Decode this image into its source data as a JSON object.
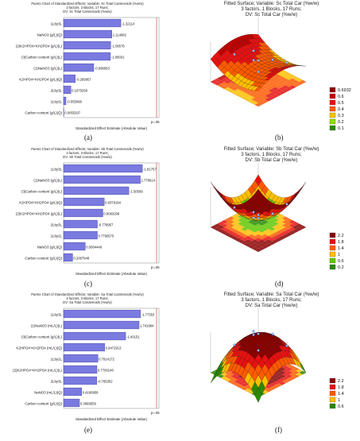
{
  "chart_data": [
    {
      "panel": "(a)",
      "type": "bar",
      "title_lines": [
        "Pareto Chart of Standardized Effects; Variable: Sc Total Carotenoids (%w/w)",
        "3 factors, 3 Blocks, 17 Runs;",
        "DV: Sc Total Carotenoids (%w/w)"
      ],
      "xlabel": "Standardized Effect Estimate (Absolute Value)",
      "p_label": "p=.05",
      "categories": [
        "1Lby3L",
        "NaNO3 (g/L)(Q)",
        "(2)K2HPO4+KH2PO4 (g/L)(L)",
        "(3)Carbon content (g/L)(L)",
        "(1)NaNO3 (g/L)(L)",
        "K2HPO4+KH2PO4 (g/L)(Q)",
        "2Lby3L",
        "1Lby2L",
        "Carbon content (g/L)(Q)"
      ],
      "values": [
        1.32114,
        1.114682,
        1.08578,
        1.08031,
        0.696563,
        0.269957,
        0.1675258,
        0.055068,
        0.0055297
      ],
      "value_labels": [
        "-1.32114",
        "1.114682",
        "-1.08578",
        "-1.08031",
        "-0.696563",
        "-0.269957",
        "0.1675258",
        "-0.055068",
        "0.0055297"
      ]
    },
    {
      "panel": "(b)",
      "type": "surface",
      "title_lines": [
        "Fitted Surface; Variable: Sc Total Car (%w/w)",
        "3 factors, 1 Blocks, 17 Runs;",
        "DV: Sc Total Car (%w/w)"
      ],
      "legend": [
        "0.6932",
        "0.6",
        "0.5",
        "0.4",
        "0.3",
        "0.2",
        "0.1"
      ],
      "legend_colors": [
        "#8b0000",
        "#c00000",
        "#e81010",
        "#ff5a00",
        "#ffc000",
        "#8ddd00",
        "#2a8a00"
      ]
    },
    {
      "panel": "(c)",
      "type": "bar",
      "title_lines": [
        "Pareto Chart of Standardized Effects; Variable: Sb Total Carotenoids (%w/w)",
        "3 factors, 3 Blocks, 17 Runs;",
        "DV: Sb Total Carotenoids (%w/w)"
      ],
      "xlabel": "Standardized Effect Estimate (Absolute Value)",
      "p_label": "p=.05",
      "categories": [
        "1Lby3L",
        "(1)NaNO3 (g/L)(L)",
        "(3)Carbon content (g/L)(L)",
        "K2HPO4+KH2PO4 (g/L)(Q)",
        "(2)K2HPO4+KH2PO4 (g/L)(L)",
        "2Lby3L",
        "1Lby2L",
        "NaNO3 (g/L)(Q)",
        "Carbon content (g/L)(Q)"
      ],
      "values": [
        1.81757,
        1.770614,
        1.50509,
        0.9379194,
        0.9063299,
        0.778957,
        0.7790575,
        0.5004449,
        0.2087948
      ],
      "value_labels": [
        "-1.81757",
        "1.770614",
        "-1.50509",
        "0.9379194",
        "0.9063299",
        "-0.778957",
        "0.7790575",
        "0.5004449",
        "0.2087948"
      ]
    },
    {
      "panel": "(d)",
      "type": "surface",
      "title_lines": [
        "Fitted Surface; Variable: Sb Total Car (%w/w)",
        "3 factors, 1 Blocks, 17 Runs;",
        "DV: Sb Total Car (%w/w)"
      ],
      "legend": [
        "2.2",
        "1.8",
        "1.4",
        "1",
        "0.6",
        "0.2"
      ],
      "legend_colors": [
        "#8b0000",
        "#e81010",
        "#ff5a00",
        "#ffc000",
        "#5fc800",
        "#2a8a00"
      ]
    },
    {
      "panel": "(e)",
      "type": "bar",
      "title_lines": [
        "Pareto Chart of Standardized Effects; Variable: Sa Total Carotenoids (%w/w)",
        "3 factors, 3 Blocks, 17 Runs;",
        "DV: Sa Total Carotenoids (%w/w)"
      ],
      "xlabel": "Standardized Effect Estimate (Absolute Value)",
      "p_label": "p=.05",
      "categories": [
        "1Lby3L",
        "(1)NaNO3 (mL/L)(L)",
        "(3)Carbon content (g/L)(L)",
        "K2HPO4+KH2PO4 (mL/L)(Q)",
        "1Lby2L",
        "(2)K2HPO4+KH2PO4 (mL/L)(L)",
        "2Lby3L",
        "NaNO3 (mL/L)(Q)",
        "Carbon content (g/L)(Q)"
      ],
      "values": [
        1.77353,
        1.741684,
        1.43151,
        0.9472913,
        0.7914172,
        0.7700146,
        0.765352,
        0.4166959,
        0.3669559
      ],
      "value_labels": [
        "-1.77353",
        "1.741684",
        "-1.43151",
        "0.9472913",
        "0.7914172",
        "0.7700146",
        "-0.765352",
        "0.4166959",
        "0.3669559"
      ]
    },
    {
      "panel": "(f)",
      "type": "surface",
      "title_lines": [
        "Fitted Surface; Variable: Sa Total Car (%w/w)",
        "3 factors, 1 Blocks, 17 Runs;",
        "DV: Sa Total Car (%w/w)"
      ],
      "legend": [
        "2.2",
        "1.8",
        "1.4",
        "1",
        "0.6"
      ],
      "legend_colors": [
        "#8b0000",
        "#e81010",
        "#ff5a00",
        "#ffc000",
        "#2a8a00"
      ]
    }
  ],
  "labels": [
    "(a)",
    "(b)",
    "(c)",
    "(d)",
    "(e)",
    "(f)"
  ]
}
